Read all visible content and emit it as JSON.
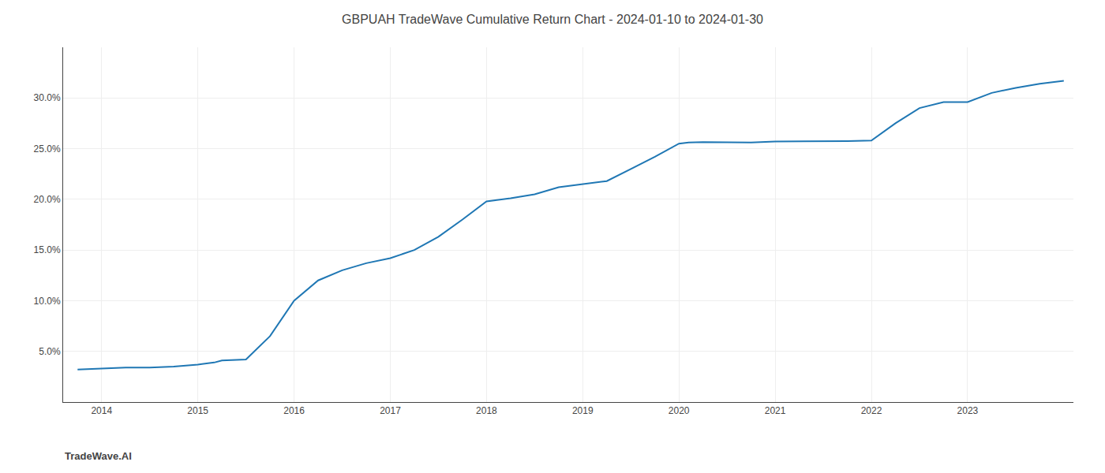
{
  "chart_data": {
    "type": "line",
    "title": "GBPUAH TradeWave Cumulative Return Chart - 2024-01-10 to 2024-01-30",
    "annotations": [
      "TradeWave.AI"
    ],
    "x": [
      2013.75,
      2014.0,
      2014.25,
      2014.5,
      2014.75,
      2015.0,
      2015.08,
      2015.17,
      2015.25,
      2015.5,
      2015.75,
      2016.0,
      2016.25,
      2016.5,
      2016.75,
      2017.0,
      2017.25,
      2017.5,
      2017.75,
      2018.0,
      2018.25,
      2018.5,
      2018.75,
      2019.0,
      2019.25,
      2019.5,
      2019.75,
      2020.0,
      2020.1,
      2020.25,
      2020.5,
      2020.75,
      2021.0,
      2021.25,
      2021.5,
      2021.75,
      2022.0,
      2022.25,
      2022.5,
      2022.75,
      2023.0,
      2023.25,
      2023.5,
      2023.75,
      2024.0
    ],
    "values": [
      3.2,
      3.3,
      3.4,
      3.4,
      3.5,
      3.7,
      3.8,
      3.9,
      4.1,
      4.2,
      6.5,
      10.0,
      12.0,
      13.0,
      13.7,
      14.2,
      15.0,
      16.3,
      18.0,
      19.8,
      20.1,
      20.5,
      21.2,
      21.5,
      21.8,
      23.0,
      24.2,
      25.5,
      25.6,
      25.65,
      25.65,
      25.6,
      25.7,
      25.7,
      25.7,
      25.75,
      25.8,
      27.5,
      29.0,
      29.6,
      29.6,
      30.5,
      31.0,
      31.4,
      31.7
    ],
    "xlim": [
      2013.6,
      2024.1
    ],
    "ylim": [
      0,
      35
    ],
    "xticks": [
      2014,
      2015,
      2016,
      2017,
      2018,
      2019,
      2020,
      2021,
      2022,
      2023
    ],
    "yticks": [
      {
        "value": 5.0,
        "label": "5.0%"
      },
      {
        "value": 10.0,
        "label": "10.0%"
      },
      {
        "value": 15.0,
        "label": "15.0%"
      },
      {
        "value": 20.0,
        "label": "20.0%"
      },
      {
        "value": 25.0,
        "label": "25.0%"
      },
      {
        "value": 30.0,
        "label": "30.0%"
      }
    ],
    "grid": true
  }
}
